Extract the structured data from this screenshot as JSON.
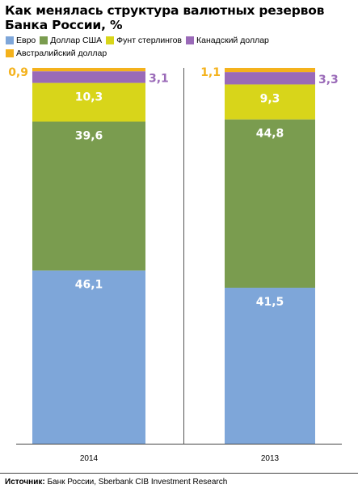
{
  "title": "Как менялась структура валютных резервов Банка России, %",
  "source": {
    "label": "Источник:",
    "text": "Банк России, Sberbank CIB Investment Research"
  },
  "chart_data": {
    "type": "bar",
    "stacked": true,
    "categories": [
      "2014",
      "2013"
    ],
    "series": [
      {
        "name": "Евро",
        "color": "#7ea6d9",
        "values": [
          46.1,
          41.5
        ],
        "labels": [
          "46,1",
          "41,5"
        ]
      },
      {
        "name": "Доллар США",
        "color": "#7a9c4f",
        "values": [
          39.6,
          44.8
        ],
        "labels": [
          "39,6",
          "44,8"
        ]
      },
      {
        "name": "Фунт стерлингов",
        "color": "#d8d51a",
        "values": [
          10.3,
          9.3
        ],
        "labels": [
          "10,3",
          "9,3"
        ]
      },
      {
        "name": "Канадский доллар",
        "color": "#9a6ab8",
        "values": [
          3.1,
          3.3
        ],
        "labels": [
          "3,1",
          "3,3"
        ]
      },
      {
        "name": "Австралийский доллар",
        "color": "#f4b21c",
        "values": [
          0.9,
          1.1
        ],
        "labels": [
          "0,9",
          "1,1"
        ]
      }
    ],
    "ylim": [
      0,
      100
    ],
    "legend_position": "top",
    "grid": false
  }
}
